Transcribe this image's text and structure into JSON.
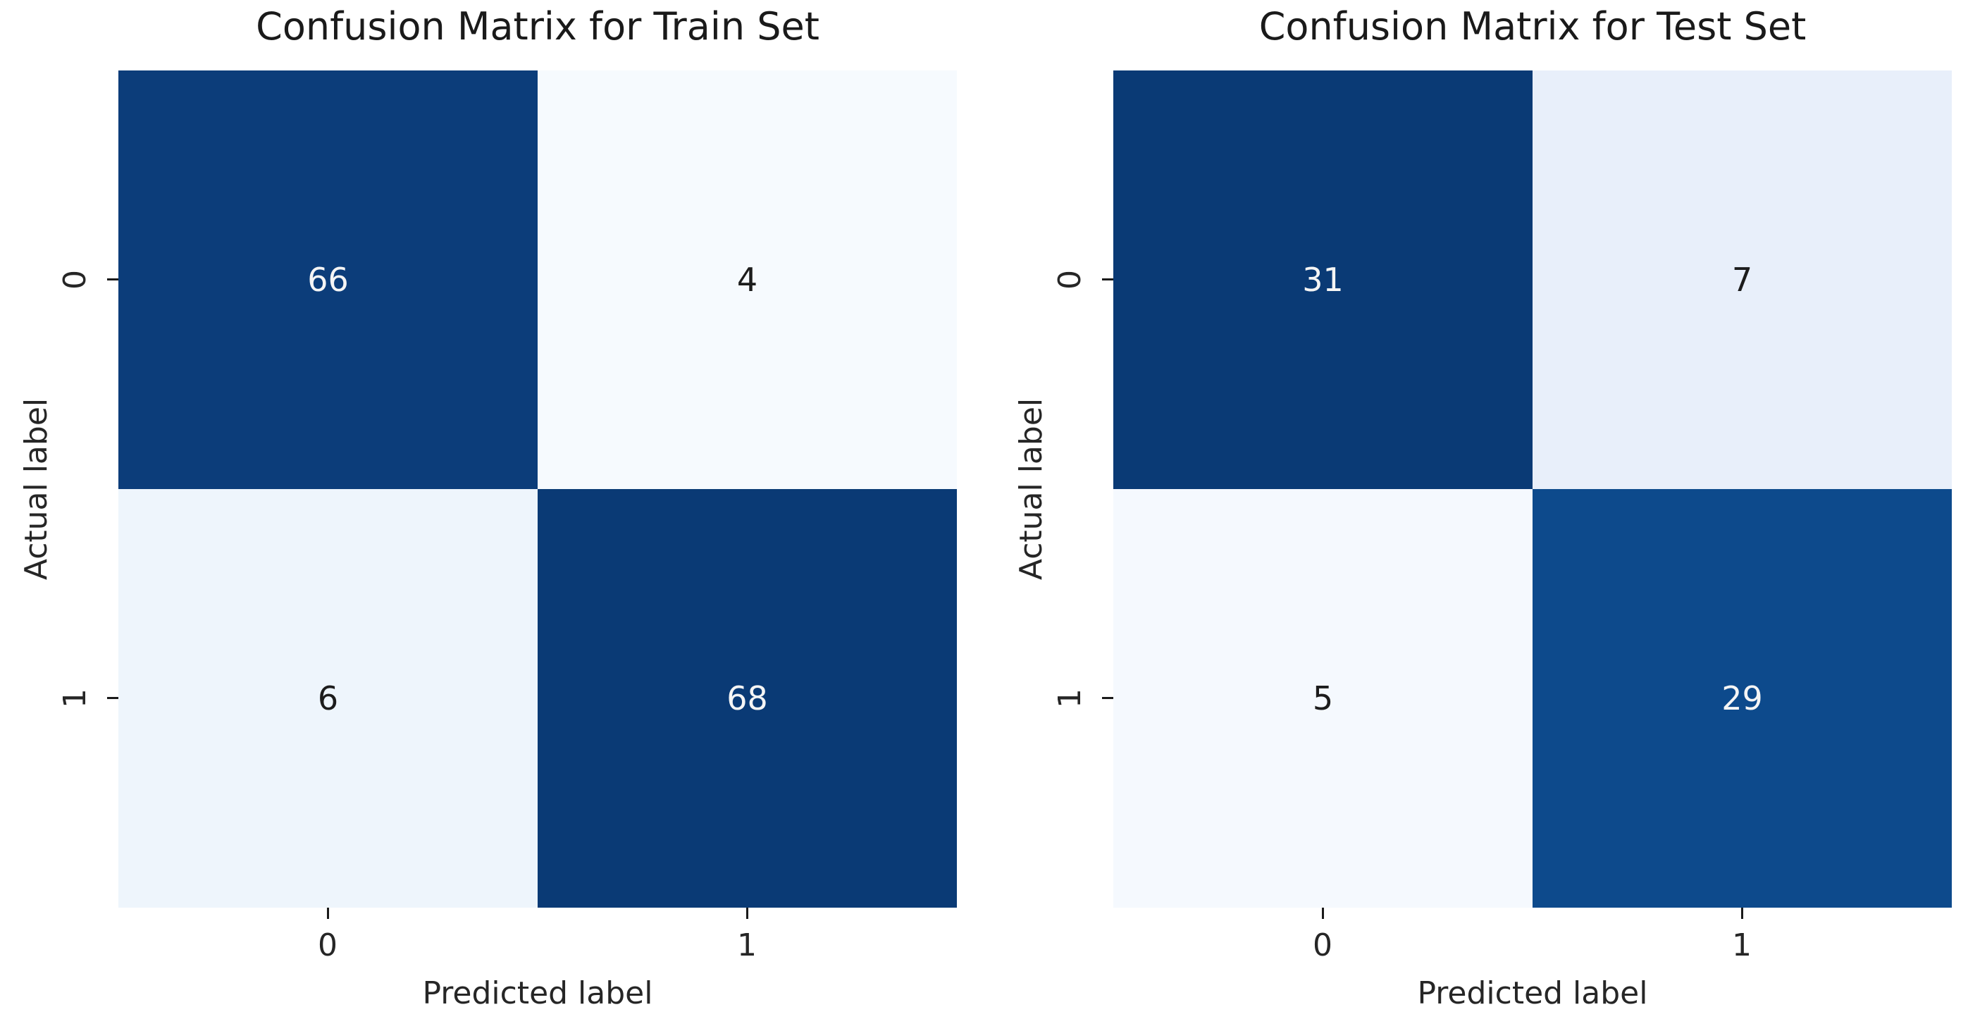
{
  "figure": {
    "background": "#ffffff",
    "panels": [
      {
        "title": "Confusion Matrix for Train Set",
        "xlabel": "Predicted label",
        "ylabel": "Actual label",
        "x_ticks": [
          "0",
          "1"
        ],
        "y_ticks": [
          "0",
          "1"
        ],
        "cells": [
          {
            "value": "66",
            "bg": "#0c3d7a",
            "fg": "#f5f5f5"
          },
          {
            "value": "4",
            "bg": "#f6fafe",
            "fg": "#1c1c1c"
          },
          {
            "value": "6",
            "bg": "#eef5fc",
            "fg": "#1c1c1c"
          },
          {
            "value": "68",
            "bg": "#0a3a75",
            "fg": "#f5f5f5"
          }
        ]
      },
      {
        "title": "Confusion Matrix for Test Set",
        "xlabel": "Predicted label",
        "ylabel": "Actual label",
        "x_ticks": [
          "0",
          "1"
        ],
        "y_ticks": [
          "0",
          "1"
        ],
        "cells": [
          {
            "value": "31",
            "bg": "#0a3a75",
            "fg": "#f5f5f5"
          },
          {
            "value": "7",
            "bg": "#e8effa",
            "fg": "#1c1c1c"
          },
          {
            "value": "5",
            "bg": "#f5f9fe",
            "fg": "#1c1c1c"
          },
          {
            "value": "29",
            "bg": "#0d4a8c",
            "fg": "#f5f5f5"
          }
        ]
      }
    ]
  },
  "chart_data": [
    {
      "type": "heatmap",
      "title": "Confusion Matrix for Train Set",
      "xlabel": "Predicted label",
      "ylabel": "Actual label",
      "x_categories": [
        "0",
        "1"
      ],
      "y_categories": [
        "0",
        "1"
      ],
      "values": [
        [
          66,
          4
        ],
        [
          6,
          68
        ]
      ],
      "colormap": "Blues",
      "annotations": true,
      "colorbar": false,
      "grid": false,
      "legend": "none"
    },
    {
      "type": "heatmap",
      "title": "Confusion Matrix for Test Set",
      "xlabel": "Predicted label",
      "ylabel": "Actual label",
      "x_categories": [
        "0",
        "1"
      ],
      "y_categories": [
        "0",
        "1"
      ],
      "values": [
        [
          31,
          7
        ],
        [
          5,
          29
        ]
      ],
      "colormap": "Blues",
      "annotations": true,
      "colorbar": false,
      "grid": false,
      "legend": "none"
    }
  ]
}
